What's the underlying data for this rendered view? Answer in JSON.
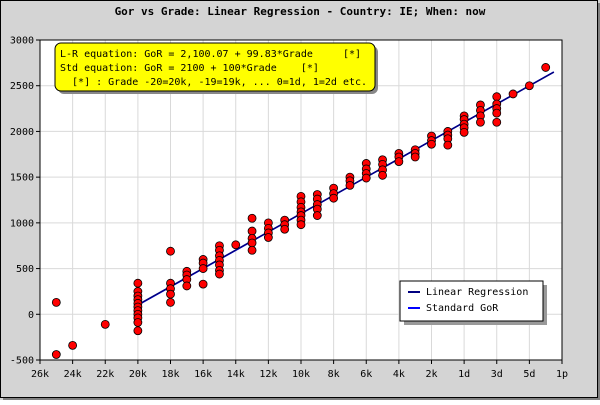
{
  "colors": {
    "background": "#d4d4d4",
    "plot_background": "#ffffff",
    "grid": "#d9d9d9",
    "points": "#ff0000",
    "point_outline": "#000000",
    "regression_line": "#000080",
    "standard_line": "#0000ff",
    "annotation_bg": "#ffff00"
  },
  "chart_data": {
    "type": "scatter",
    "title": "Gor vs Grade: Linear Regression - Country: IE; When: now",
    "annotation": {
      "lines": [
        "L-R equation: GoR = 2,100.07 + 99.83*Grade     [*]",
        "Std equation: GoR = 2100 + 100*Grade    [*]",
        "  [*] : Grade -20=20k, -19=19k, ... 0=1d, 1=2d etc."
      ]
    },
    "x_axis": {
      "min": -26,
      "max": 6,
      "tick_values": [
        -26,
        -24,
        -22,
        -20,
        -18,
        -16,
        -14,
        -12,
        -10,
        -8,
        -6,
        -4,
        -2,
        0,
        2,
        4,
        6
      ],
      "tick_labels": [
        "26k",
        "24k",
        "22k",
        "20k",
        "18k",
        "16k",
        "14k",
        "12k",
        "10k",
        "8k",
        "6k",
        "4k",
        "2k",
        "1d",
        "3d",
        "5d",
        "1p"
      ]
    },
    "y_axis": {
      "min": -500,
      "max": 3000,
      "tick_values": [
        -500,
        0,
        500,
        1000,
        1500,
        2000,
        2500,
        3000
      ],
      "tick_labels": [
        "-500",
        "0",
        "500",
        "1000",
        "1500",
        "2000",
        "2500",
        "3000"
      ]
    },
    "grid": true,
    "legend": {
      "position": "bottom-right",
      "entries": [
        "Linear Regression",
        "Standard GoR"
      ]
    },
    "lines": [
      {
        "name": "Linear Regression",
        "intercept": 2100.07,
        "slope": 99.83,
        "x_range": [
          -20,
          5.5
        ]
      },
      {
        "name": "Standard GoR",
        "intercept": 2100,
        "slope": 100,
        "x_range": [
          -20,
          5.5
        ]
      }
    ],
    "points": [
      [
        -25,
        130
      ],
      [
        -25,
        -440
      ],
      [
        -24,
        -340
      ],
      [
        -22,
        -110
      ],
      [
        -20,
        340
      ],
      [
        -20,
        250
      ],
      [
        -20,
        200
      ],
      [
        -20,
        160
      ],
      [
        -20,
        120
      ],
      [
        -20,
        80
      ],
      [
        -20,
        40
      ],
      [
        -20,
        0
      ],
      [
        -20,
        -40
      ],
      [
        -20,
        -90
      ],
      [
        -20,
        -180
      ],
      [
        -18,
        690
      ],
      [
        -18,
        340
      ],
      [
        -18,
        280
      ],
      [
        -18,
        220
      ],
      [
        -18,
        130
      ],
      [
        -17,
        470
      ],
      [
        -17,
        430
      ],
      [
        -17,
        380
      ],
      [
        -17,
        310
      ],
      [
        -16,
        600
      ],
      [
        -16,
        560
      ],
      [
        -16,
        500
      ],
      [
        -16,
        330
      ],
      [
        -15,
        750
      ],
      [
        -15,
        700
      ],
      [
        -15,
        640
      ],
      [
        -15,
        590
      ],
      [
        -15,
        540
      ],
      [
        -15,
        480
      ],
      [
        -15,
        440
      ],
      [
        -14,
        760
      ],
      [
        -13,
        1050
      ],
      [
        -13,
        910
      ],
      [
        -13,
        830
      ],
      [
        -13,
        780
      ],
      [
        -13,
        700
      ],
      [
        -12,
        1000
      ],
      [
        -12,
        940
      ],
      [
        -12,
        890
      ],
      [
        -12,
        840
      ],
      [
        -11,
        1030
      ],
      [
        -11,
        980
      ],
      [
        -11,
        930
      ],
      [
        -10,
        1290
      ],
      [
        -10,
        1230
      ],
      [
        -10,
        1170
      ],
      [
        -10,
        1120
      ],
      [
        -10,
        1080
      ],
      [
        -10,
        1030
      ],
      [
        -10,
        980
      ],
      [
        -9,
        1310
      ],
      [
        -9,
        1260
      ],
      [
        -9,
        1200
      ],
      [
        -9,
        1150
      ],
      [
        -9,
        1080
      ],
      [
        -8,
        1380
      ],
      [
        -8,
        1320
      ],
      [
        -8,
        1270
      ],
      [
        -7,
        1500
      ],
      [
        -7,
        1460
      ],
      [
        -7,
        1410
      ],
      [
        -6,
        1650
      ],
      [
        -6,
        1590
      ],
      [
        -6,
        1540
      ],
      [
        -6,
        1490
      ],
      [
        -5,
        1690
      ],
      [
        -5,
        1640
      ],
      [
        -5,
        1580
      ],
      [
        -5,
        1520
      ],
      [
        -4,
        1760
      ],
      [
        -4,
        1720
      ],
      [
        -4,
        1670
      ],
      [
        -3,
        1800
      ],
      [
        -3,
        1760
      ],
      [
        -3,
        1720
      ],
      [
        -2,
        1950
      ],
      [
        -2,
        1900
      ],
      [
        -2,
        1860
      ],
      [
        -1,
        2000
      ],
      [
        -1,
        1960
      ],
      [
        -1,
        1920
      ],
      [
        -1,
        1850
      ],
      [
        0,
        2170
      ],
      [
        0,
        2130
      ],
      [
        0,
        2080
      ],
      [
        0,
        2040
      ],
      [
        0,
        1990
      ],
      [
        1,
        2290
      ],
      [
        1,
        2230
      ],
      [
        1,
        2170
      ],
      [
        1,
        2100
      ],
      [
        2,
        2380
      ],
      [
        2,
        2300
      ],
      [
        2,
        2250
      ],
      [
        2,
        2200
      ],
      [
        2,
        2100
      ],
      [
        3,
        2410
      ],
      [
        4,
        2500
      ],
      [
        5,
        2700
      ]
    ]
  }
}
